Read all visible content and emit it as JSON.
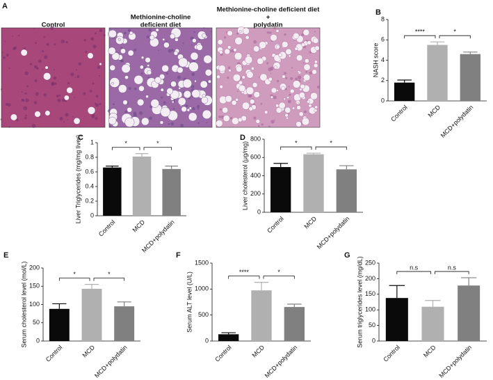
{
  "panel_a": {
    "label": "A",
    "images": [
      {
        "title_lines": [
          "Control"
        ]
      },
      {
        "title_lines": [
          "Methionine-choline",
          "deficient diet"
        ]
      },
      {
        "title_lines": [
          "Methionine-choline deficient diet",
          "+",
          "polydatin"
        ]
      }
    ]
  },
  "chart_data": [
    {
      "type": "bar",
      "panel_label": "B",
      "ylabel": "NASH score",
      "categories": [
        "Control",
        "MCD",
        "MCD+polydatin"
      ],
      "values": [
        1.8,
        5.5,
        4.6
      ],
      "errors": [
        0.25,
        0.3,
        0.2
      ],
      "colors": [
        "#0a0a0a",
        "#b0b0b0",
        "#808080"
      ],
      "ylim": [
        0,
        8
      ],
      "yticks": [
        0,
        2,
        4,
        6,
        8
      ],
      "comparisons": [
        {
          "groups": [
            "Control",
            "MCD"
          ],
          "label": "****"
        },
        {
          "groups": [
            "MCD",
            "MCD+polydatin"
          ],
          "label": "*"
        }
      ]
    },
    {
      "type": "bar",
      "panel_label": "C",
      "ylabel": "Liver Triglycerides (mg/mg liver)",
      "categories": [
        "Control",
        "MCD",
        "MCD+polydatin"
      ],
      "values": [
        0.66,
        0.81,
        0.64
      ],
      "errors": [
        0.02,
        0.04,
        0.04
      ],
      "colors": [
        "#0a0a0a",
        "#b0b0b0",
        "#808080"
      ],
      "ylim": [
        0,
        1
      ],
      "yticks": [
        0,
        0.2,
        0.4,
        0.6,
        0.8,
        1
      ],
      "comparisons": [
        {
          "groups": [
            "Control",
            "MCD"
          ],
          "label": "*"
        },
        {
          "groups": [
            "MCD",
            "MCD+polydatin"
          ],
          "label": "*"
        }
      ]
    },
    {
      "type": "bar",
      "panel_label": "D",
      "ylabel": "Liver cholesterol (μg/mg)",
      "categories": [
        "Control",
        "MCD",
        "MCD+polydatin"
      ],
      "values": [
        495,
        635,
        470
      ],
      "errors": [
        40,
        12,
        40
      ],
      "colors": [
        "#0a0a0a",
        "#b0b0b0",
        "#808080"
      ],
      "ylim": [
        0,
        800
      ],
      "yticks": [
        0,
        200,
        400,
        600,
        800
      ],
      "comparisons": [
        {
          "groups": [
            "Control",
            "MCD"
          ],
          "label": "*"
        },
        {
          "groups": [
            "MCD",
            "MCD+polydatin"
          ],
          "label": "*"
        }
      ]
    },
    {
      "type": "bar",
      "panel_label": "E",
      "ylabel": "Serum cholesterol level (mol/L)",
      "categories": [
        "Control",
        "MCD",
        "MCD+polydatin"
      ],
      "values": [
        88,
        143,
        95
      ],
      "errors": [
        14,
        12,
        12
      ],
      "colors": [
        "#0a0a0a",
        "#b0b0b0",
        "#808080"
      ],
      "ylim": [
        0,
        200
      ],
      "yticks": [
        0,
        50,
        100,
        150,
        200
      ],
      "comparisons": [
        {
          "groups": [
            "Control",
            "MCD"
          ],
          "label": "*"
        },
        {
          "groups": [
            "MCD",
            "MCD+polydatin"
          ],
          "label": "*"
        }
      ]
    },
    {
      "type": "bar",
      "panel_label": "F",
      "ylabel": "Serum ALT level (U/L)",
      "categories": [
        "Control",
        "MCD",
        "MCD+polydatin"
      ],
      "values": [
        130,
        975,
        655
      ],
      "errors": [
        30,
        155,
        55
      ],
      "colors": [
        "#0a0a0a",
        "#b0b0b0",
        "#808080"
      ],
      "ylim": [
        0,
        1500
      ],
      "yticks": [
        0,
        500,
        1000,
        1500
      ],
      "comparisons": [
        {
          "groups": [
            "Control",
            "MCD"
          ],
          "label": "****"
        },
        {
          "groups": [
            "MCD",
            "MCD+polydatin"
          ],
          "label": "*"
        }
      ]
    },
    {
      "type": "bar",
      "panel_label": "G",
      "ylabel": "Serum triglycerides level (mg/dL)",
      "categories": [
        "Control",
        "MCD",
        "MCD+polydatin"
      ],
      "values": [
        138,
        110,
        178
      ],
      "errors": [
        40,
        20,
        25
      ],
      "colors": [
        "#0a0a0a",
        "#b0b0b0",
        "#808080"
      ],
      "ylim": [
        0,
        250
      ],
      "yticks": [
        0,
        50,
        100,
        150,
        200,
        250
      ],
      "comparisons": [
        {
          "groups": [
            "Control",
            "MCD"
          ],
          "label": "n.s"
        },
        {
          "groups": [
            "MCD",
            "MCD+polydatin"
          ],
          "label": "n.s"
        }
      ]
    }
  ]
}
